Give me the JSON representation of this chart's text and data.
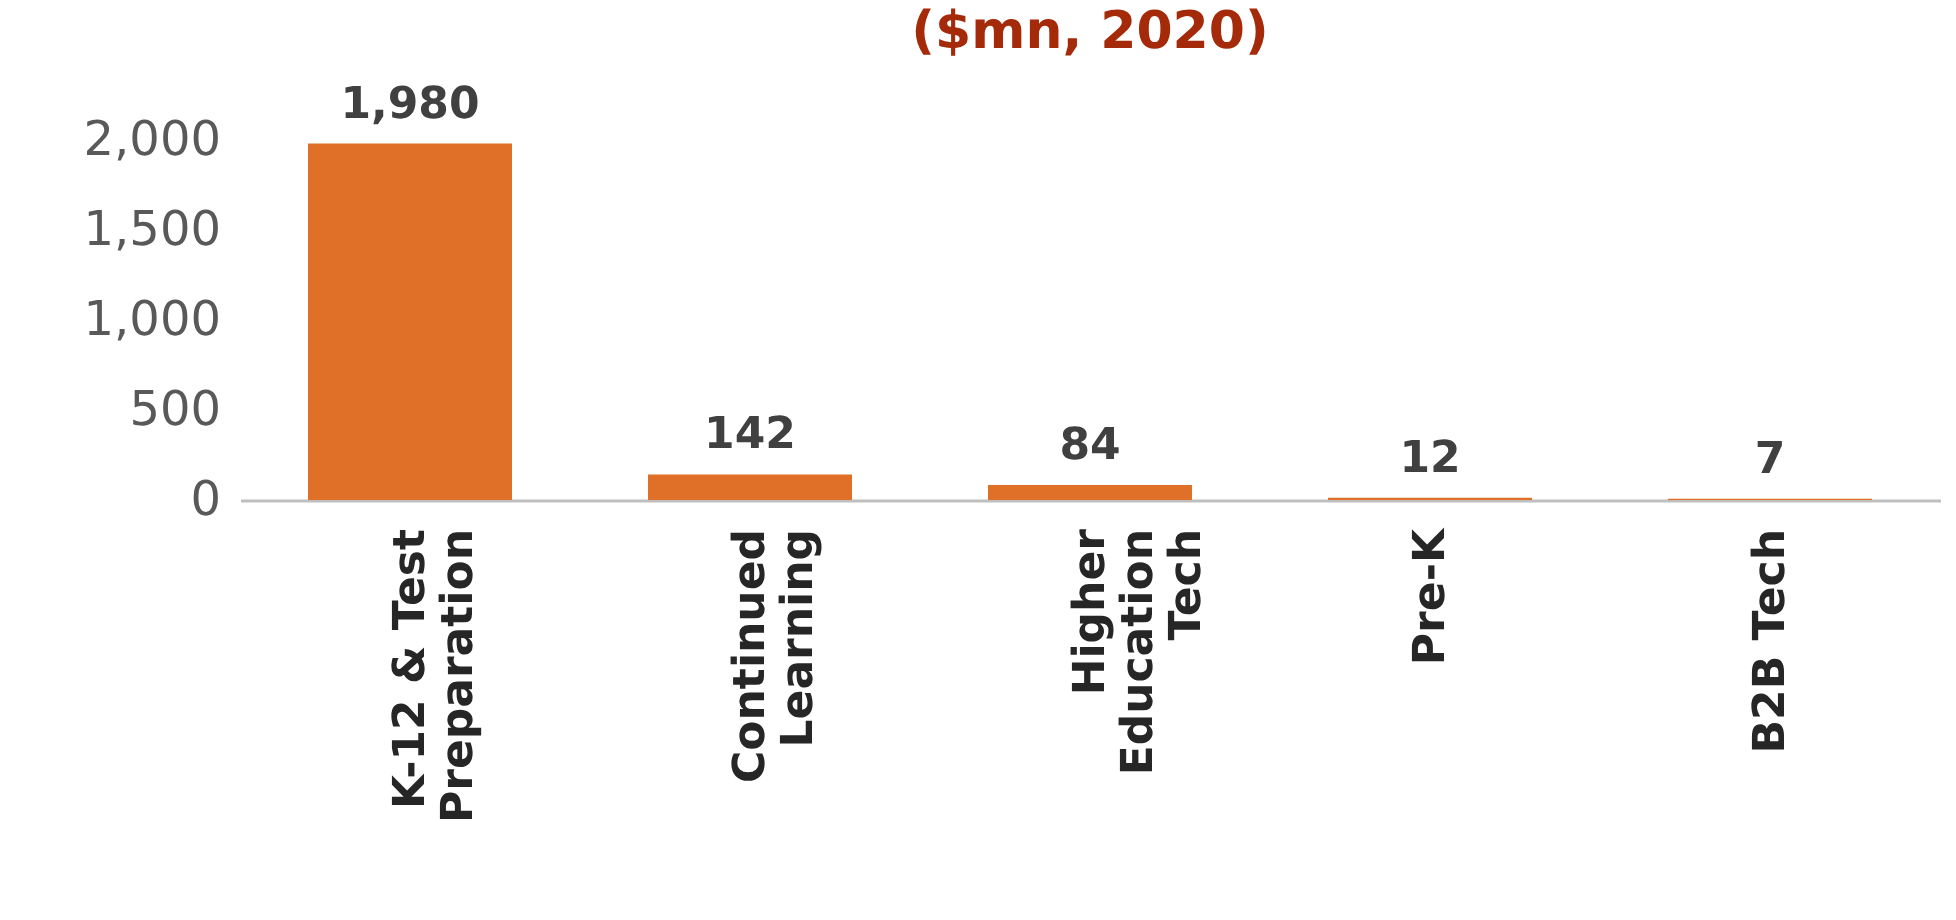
{
  "chart_data": {
    "type": "bar",
    "title": "($mn, 2020)",
    "categories": [
      "K-12 & Test\nPreparation",
      "Continued\nLearning",
      "Higher\nEducation\nTech",
      "Pre-K",
      "B2B Tech"
    ],
    "values": [
      1980,
      142,
      84,
      12,
      7
    ],
    "value_labels": [
      "1,980",
      "142",
      "84",
      "12",
      "7"
    ],
    "color": "#e07028",
    "ylim": [
      0,
      2000
    ],
    "yticks": [
      0,
      500,
      {
        "value": 1000,
        "label": "1,000"
      },
      {
        "value": 1500,
        "label": "1,500"
      },
      {
        "value": 2000,
        "label": "2,000"
      }
    ],
    "grid": false
  }
}
